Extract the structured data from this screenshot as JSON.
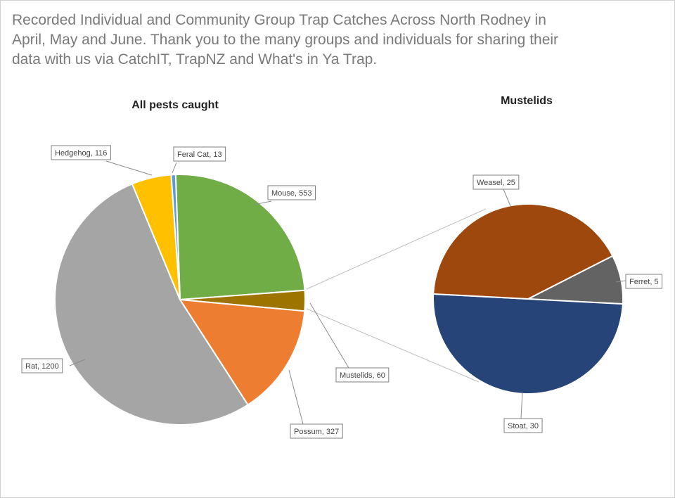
{
  "title": "Recorded Individual and Community Group Trap Catches Across North Rodney in April, May and June.  Thank you to the many groups and individuals for sharing their data with us via CatchIT, TrapNZ and What's in Ya Trap.",
  "chart_data": [
    {
      "type": "pie",
      "title": "All pests caught",
      "slices": [
        {
          "name": "Mouse",
          "value": 553,
          "label": "Mouse, 553",
          "color": "#70ad47"
        },
        {
          "name": "Mustelids",
          "value": 60,
          "label": "Mustelids, 60",
          "color": "#9e7400"
        },
        {
          "name": "Possum",
          "value": 327,
          "label": "Possum, 327",
          "color": "#ed7d31"
        },
        {
          "name": "Rat",
          "value": 1200,
          "label": "Rat, 1200",
          "color": "#a5a5a5"
        },
        {
          "name": "Hedgehog",
          "value": 116,
          "label": "Hedgehog, 116",
          "color": "#ffc000"
        },
        {
          "name": "Feral Cat",
          "value": 13,
          "label": "Feral Cat, 13",
          "color": "#5b9bd5"
        }
      ]
    },
    {
      "type": "pie",
      "title": "Mustelids",
      "slices": [
        {
          "name": "Ferret",
          "value": 5,
          "label": "Ferret, 5",
          "color": "#636363"
        },
        {
          "name": "Stoat",
          "value": 30,
          "label": "Stoat, 30",
          "color": "#264478"
        },
        {
          "name": "Weasel",
          "value": 25,
          "label": "Weasel, 25",
          "color": "#9e480e"
        }
      ]
    }
  ]
}
